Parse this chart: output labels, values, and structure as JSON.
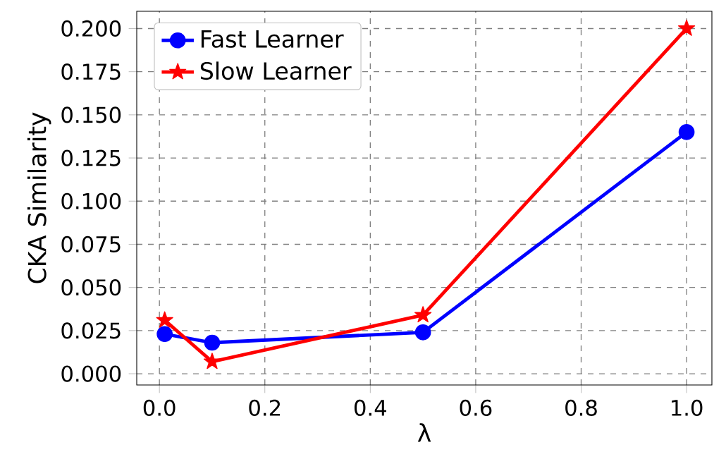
{
  "chart_data": {
    "type": "line",
    "xlabel": "λ",
    "ylabel": "CKA Similarity",
    "x": [
      0.01,
      0.1,
      0.5,
      1.0
    ],
    "series": [
      {
        "name": "Fast Learner",
        "color": "#0000ff",
        "marker": "circle",
        "values": [
          0.023,
          0.018,
          0.024,
          0.14
        ]
      },
      {
        "name": "Slow Learner",
        "color": "#ff0000",
        "marker": "star",
        "values": [
          0.031,
          0.007,
          0.034,
          0.2
        ]
      }
    ],
    "xlim": [
      -0.043,
      1.048
    ],
    "ylim": [
      -0.0065,
      0.21
    ],
    "xticks": [
      {
        "value": 0,
        "label": "0.0"
      },
      {
        "value": 0.2,
        "label": "0.2"
      },
      {
        "value": 0.4,
        "label": "0.4"
      },
      {
        "value": 0.6,
        "label": "0.6"
      },
      {
        "value": 0.8,
        "label": "0.8"
      },
      {
        "value": 1,
        "label": "1.0"
      }
    ],
    "yticks": [
      {
        "value": 0,
        "label": "0.000"
      },
      {
        "value": 0.025,
        "label": "0.025"
      },
      {
        "value": 0.05,
        "label": "0.050"
      },
      {
        "value": 0.075,
        "label": "0.075"
      },
      {
        "value": 0.1,
        "label": "0.100"
      },
      {
        "value": 0.125,
        "label": "0.125"
      },
      {
        "value": 0.15,
        "label": "0.150"
      },
      {
        "value": 0.175,
        "label": "0.175"
      },
      {
        "value": 0.2,
        "label": "0.200"
      }
    ],
    "grid": true,
    "legend": "top left",
    "line_style": "solid"
  }
}
